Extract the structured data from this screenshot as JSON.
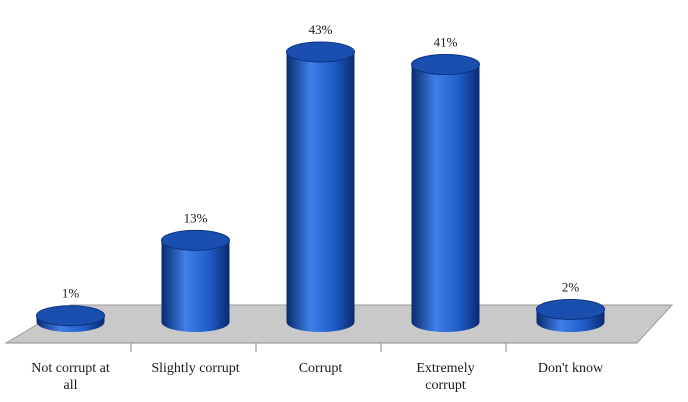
{
  "chart_data": {
    "type": "bar",
    "style": "3d-cylinder",
    "categories": [
      [
        "Not corrupt at",
        "all"
      ],
      [
        "Slightly corrupt"
      ],
      [
        "Corrupt"
      ],
      [
        "Extremely",
        "corrupt"
      ],
      [
        "Don't know"
      ]
    ],
    "values": [
      1,
      13,
      43,
      41,
      2
    ],
    "value_labels": [
      "1%",
      "13%",
      "43%",
      "41%",
      "2%"
    ],
    "title": "",
    "xlabel": "",
    "ylabel": "",
    "ylim": [
      0,
      43
    ],
    "grid": false,
    "legend": "none",
    "colors": {
      "bar_side_dark": "#0a2a6e",
      "bar_side_mid": "#1f5cc8",
      "bar_side_light": "#3f7fe6",
      "bar_top": "#1a4fb0",
      "bar_top_rim": "#0c3280",
      "floor": "#c9c9c9",
      "floor_edge": "#9a9a9a",
      "text": "#1a1a1a"
    }
  }
}
